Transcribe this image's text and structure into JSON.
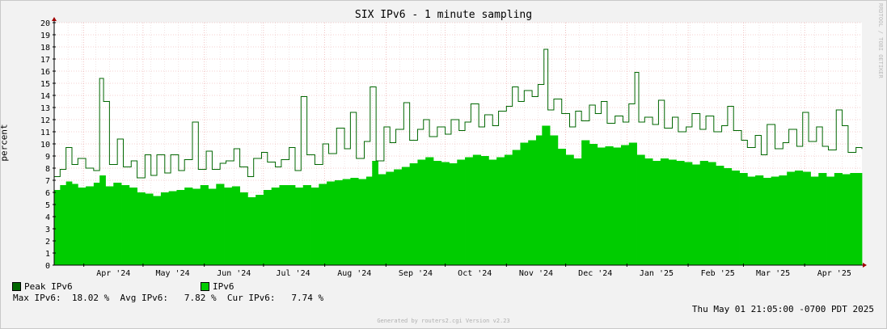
{
  "chart_data": {
    "type": "area",
    "title": "SIX IPv6 - 1 minute sampling",
    "ylabel": "percent",
    "ylim": [
      0,
      20
    ],
    "yticks": [
      0,
      1,
      2,
      3,
      4,
      5,
      6,
      7,
      8,
      9,
      10,
      11,
      12,
      13,
      14,
      15,
      16,
      17,
      18,
      19,
      20
    ],
    "x_start": "2024-03-17",
    "x_end": "2025-04-30",
    "xticks": [
      {
        "label": "Apr '24",
        "date": "2024-04-01"
      },
      {
        "label": "May '24",
        "date": "2024-05-01"
      },
      {
        "label": "Jun '24",
        "date": "2024-06-01"
      },
      {
        "label": "Jul '24",
        "date": "2024-07-01"
      },
      {
        "label": "Aug '24",
        "date": "2024-08-01"
      },
      {
        "label": "Sep '24",
        "date": "2024-09-01"
      },
      {
        "label": "Oct '24",
        "date": "2024-10-01"
      },
      {
        "label": "Nov '24",
        "date": "2024-11-01"
      },
      {
        "label": "Dec '24",
        "date": "2024-12-01"
      },
      {
        "label": "Jan '25",
        "date": "2025-01-01"
      },
      {
        "label": "Feb '25",
        "date": "2025-02-01"
      },
      {
        "label": "Mar '25",
        "date": "2025-03-01"
      },
      {
        "label": "Apr '25",
        "date": "2025-04-01"
      }
    ],
    "grid": true,
    "series": [
      {
        "name": "Peak IPv6",
        "style": "step-line",
        "color": "#006600",
        "points": [
          [
            "2024-03-17",
            7.3
          ],
          [
            "2024-03-20",
            7.9
          ],
          [
            "2024-03-23",
            9.7
          ],
          [
            "2024-03-26",
            8.3
          ],
          [
            "2024-03-29",
            8.8
          ],
          [
            "2024-04-02",
            8.0
          ],
          [
            "2024-04-06",
            7.8
          ],
          [
            "2024-04-09",
            15.4
          ],
          [
            "2024-04-11",
            13.5
          ],
          [
            "2024-04-14",
            8.3
          ],
          [
            "2024-04-18",
            10.4
          ],
          [
            "2024-04-21",
            8.1
          ],
          [
            "2024-04-25",
            8.6
          ],
          [
            "2024-04-28",
            7.2
          ],
          [
            "2024-05-02",
            9.1
          ],
          [
            "2024-05-05",
            7.4
          ],
          [
            "2024-05-08",
            9.1
          ],
          [
            "2024-05-12",
            7.6
          ],
          [
            "2024-05-15",
            9.1
          ],
          [
            "2024-05-19",
            7.8
          ],
          [
            "2024-05-22",
            8.7
          ],
          [
            "2024-05-26",
            11.8
          ],
          [
            "2024-05-29",
            7.9
          ],
          [
            "2024-06-02",
            9.4
          ],
          [
            "2024-06-05",
            7.9
          ],
          [
            "2024-06-09",
            8.4
          ],
          [
            "2024-06-12",
            8.6
          ],
          [
            "2024-06-16",
            9.6
          ],
          [
            "2024-06-19",
            8.1
          ],
          [
            "2024-06-23",
            7.3
          ],
          [
            "2024-06-26",
            8.8
          ],
          [
            "2024-06-30",
            9.3
          ],
          [
            "2024-07-03",
            8.5
          ],
          [
            "2024-07-07",
            8.1
          ],
          [
            "2024-07-10",
            8.7
          ],
          [
            "2024-07-14",
            9.7
          ],
          [
            "2024-07-17",
            7.8
          ],
          [
            "2024-07-20",
            13.9
          ],
          [
            "2024-07-23",
            9.1
          ],
          [
            "2024-07-27",
            8.3
          ],
          [
            "2024-07-31",
            10.0
          ],
          [
            "2024-08-03",
            9.2
          ],
          [
            "2024-08-07",
            11.3
          ],
          [
            "2024-08-11",
            9.6
          ],
          [
            "2024-08-14",
            12.6
          ],
          [
            "2024-08-17",
            8.8
          ],
          [
            "2024-08-21",
            10.2
          ],
          [
            "2024-08-24",
            14.7
          ],
          [
            "2024-08-27",
            8.6
          ],
          [
            "2024-08-31",
            11.4
          ],
          [
            "2024-09-03",
            10.1
          ],
          [
            "2024-09-06",
            11.2
          ],
          [
            "2024-09-10",
            13.4
          ],
          [
            "2024-09-13",
            10.3
          ],
          [
            "2024-09-17",
            11.2
          ],
          [
            "2024-09-20",
            12.0
          ],
          [
            "2024-09-23",
            10.6
          ],
          [
            "2024-09-27",
            11.4
          ],
          [
            "2024-10-01",
            10.8
          ],
          [
            "2024-10-04",
            12.0
          ],
          [
            "2024-10-08",
            11.1
          ],
          [
            "2024-10-11",
            11.8
          ],
          [
            "2024-10-14",
            13.3
          ],
          [
            "2024-10-18",
            11.4
          ],
          [
            "2024-10-21",
            12.4
          ],
          [
            "2024-10-25",
            11.5
          ],
          [
            "2024-10-28",
            12.7
          ],
          [
            "2024-11-01",
            13.1
          ],
          [
            "2024-11-04",
            14.7
          ],
          [
            "2024-11-07",
            13.5
          ],
          [
            "2024-11-10",
            14.4
          ],
          [
            "2024-11-14",
            13.9
          ],
          [
            "2024-11-17",
            14.9
          ],
          [
            "2024-11-20",
            17.8
          ],
          [
            "2024-11-22",
            12.8
          ],
          [
            "2024-11-25",
            13.7
          ],
          [
            "2024-11-29",
            12.5
          ],
          [
            "2024-12-03",
            11.4
          ],
          [
            "2024-12-06",
            12.7
          ],
          [
            "2024-12-09",
            11.9
          ],
          [
            "2024-12-13",
            13.2
          ],
          [
            "2024-12-16",
            12.5
          ],
          [
            "2024-12-19",
            13.5
          ],
          [
            "2024-12-22",
            11.7
          ],
          [
            "2024-12-26",
            12.3
          ],
          [
            "2024-12-30",
            11.8
          ],
          [
            "2025-01-02",
            13.3
          ],
          [
            "2025-01-05",
            15.9
          ],
          [
            "2025-01-07",
            11.8
          ],
          [
            "2025-01-10",
            12.2
          ],
          [
            "2025-01-14",
            11.6
          ],
          [
            "2025-01-17",
            13.6
          ],
          [
            "2025-01-20",
            11.3
          ],
          [
            "2025-01-24",
            12.2
          ],
          [
            "2025-01-27",
            11.0
          ],
          [
            "2025-01-31",
            11.4
          ],
          [
            "2025-02-03",
            12.5
          ],
          [
            "2025-02-07",
            11.2
          ],
          [
            "2025-02-10",
            12.3
          ],
          [
            "2025-02-14",
            11.0
          ],
          [
            "2025-02-18",
            11.5
          ],
          [
            "2025-02-21",
            13.1
          ],
          [
            "2025-02-24",
            11.1
          ],
          [
            "2025-02-28",
            10.3
          ],
          [
            "2025-03-03",
            9.7
          ],
          [
            "2025-03-07",
            10.7
          ],
          [
            "2025-03-10",
            9.1
          ],
          [
            "2025-03-13",
            11.6
          ],
          [
            "2025-03-17",
            9.6
          ],
          [
            "2025-03-21",
            10.1
          ],
          [
            "2025-03-24",
            11.2
          ],
          [
            "2025-03-28",
            9.8
          ],
          [
            "2025-03-31",
            12.6
          ],
          [
            "2025-04-03",
            10.2
          ],
          [
            "2025-04-07",
            11.4
          ],
          [
            "2025-04-10",
            9.8
          ],
          [
            "2025-04-13",
            9.5
          ],
          [
            "2025-04-17",
            12.8
          ],
          [
            "2025-04-20",
            11.5
          ],
          [
            "2025-04-23",
            9.3
          ],
          [
            "2025-04-27",
            9.7
          ],
          [
            "2025-04-30",
            9.6
          ]
        ]
      },
      {
        "name": "IPv6",
        "style": "area",
        "color": "#00cc00",
        "points": [
          [
            "2024-03-17",
            6.2
          ],
          [
            "2024-03-20",
            6.6
          ],
          [
            "2024-03-23",
            6.9
          ],
          [
            "2024-03-26",
            6.7
          ],
          [
            "2024-03-29",
            6.4
          ],
          [
            "2024-04-02",
            6.5
          ],
          [
            "2024-04-06",
            6.8
          ],
          [
            "2024-04-09",
            7.4
          ],
          [
            "2024-04-12",
            6.5
          ],
          [
            "2024-04-16",
            6.8
          ],
          [
            "2024-04-20",
            6.6
          ],
          [
            "2024-04-24",
            6.4
          ],
          [
            "2024-04-28",
            6.0
          ],
          [
            "2024-05-02",
            5.9
          ],
          [
            "2024-05-06",
            5.7
          ],
          [
            "2024-05-10",
            6.0
          ],
          [
            "2024-05-14",
            6.1
          ],
          [
            "2024-05-18",
            6.2
          ],
          [
            "2024-05-22",
            6.4
          ],
          [
            "2024-05-26",
            6.3
          ],
          [
            "2024-05-30",
            6.6
          ],
          [
            "2024-06-03",
            6.3
          ],
          [
            "2024-06-07",
            6.7
          ],
          [
            "2024-06-11",
            6.4
          ],
          [
            "2024-06-15",
            6.5
          ],
          [
            "2024-06-19",
            6.0
          ],
          [
            "2024-06-23",
            5.6
          ],
          [
            "2024-06-27",
            5.8
          ],
          [
            "2024-07-01",
            6.2
          ],
          [
            "2024-07-05",
            6.4
          ],
          [
            "2024-07-09",
            6.6
          ],
          [
            "2024-07-13",
            6.6
          ],
          [
            "2024-07-17",
            6.4
          ],
          [
            "2024-07-21",
            6.6
          ],
          [
            "2024-07-25",
            6.4
          ],
          [
            "2024-07-29",
            6.7
          ],
          [
            "2024-08-02",
            6.9
          ],
          [
            "2024-08-06",
            7.0
          ],
          [
            "2024-08-10",
            7.1
          ],
          [
            "2024-08-14",
            7.2
          ],
          [
            "2024-08-18",
            7.1
          ],
          [
            "2024-08-22",
            7.3
          ],
          [
            "2024-08-25",
            8.6
          ],
          [
            "2024-08-28",
            7.5
          ],
          [
            "2024-09-01",
            7.7
          ],
          [
            "2024-09-05",
            7.9
          ],
          [
            "2024-09-09",
            8.1
          ],
          [
            "2024-09-13",
            8.4
          ],
          [
            "2024-09-17",
            8.7
          ],
          [
            "2024-09-21",
            8.9
          ],
          [
            "2024-09-25",
            8.6
          ],
          [
            "2024-09-29",
            8.5
          ],
          [
            "2024-10-03",
            8.4
          ],
          [
            "2024-10-07",
            8.7
          ],
          [
            "2024-10-11",
            8.9
          ],
          [
            "2024-10-15",
            9.1
          ],
          [
            "2024-10-19",
            9.0
          ],
          [
            "2024-10-23",
            8.7
          ],
          [
            "2024-10-27",
            8.9
          ],
          [
            "2024-10-31",
            9.1
          ],
          [
            "2024-11-04",
            9.5
          ],
          [
            "2024-11-08",
            10.1
          ],
          [
            "2024-11-12",
            10.3
          ],
          [
            "2024-11-16",
            10.7
          ],
          [
            "2024-11-19",
            11.5
          ],
          [
            "2024-11-23",
            10.7
          ],
          [
            "2024-11-27",
            9.6
          ],
          [
            "2024-12-01",
            9.1
          ],
          [
            "2024-12-05",
            8.8
          ],
          [
            "2024-12-09",
            10.3
          ],
          [
            "2024-12-13",
            10.0
          ],
          [
            "2024-12-17",
            9.7
          ],
          [
            "2024-12-21",
            9.8
          ],
          [
            "2024-12-25",
            9.7
          ],
          [
            "2024-12-29",
            9.9
          ],
          [
            "2025-01-02",
            10.1
          ],
          [
            "2025-01-06",
            9.1
          ],
          [
            "2025-01-10",
            8.8
          ],
          [
            "2025-01-14",
            8.6
          ],
          [
            "2025-01-18",
            8.8
          ],
          [
            "2025-01-22",
            8.7
          ],
          [
            "2025-01-26",
            8.6
          ],
          [
            "2025-01-30",
            8.5
          ],
          [
            "2025-02-03",
            8.3
          ],
          [
            "2025-02-07",
            8.6
          ],
          [
            "2025-02-11",
            8.5
          ],
          [
            "2025-02-15",
            8.2
          ],
          [
            "2025-02-19",
            8.0
          ],
          [
            "2025-02-23",
            7.8
          ],
          [
            "2025-02-27",
            7.6
          ],
          [
            "2025-03-03",
            7.3
          ],
          [
            "2025-03-07",
            7.4
          ],
          [
            "2025-03-11",
            7.2
          ],
          [
            "2025-03-15",
            7.3
          ],
          [
            "2025-03-19",
            7.4
          ],
          [
            "2025-03-23",
            7.7
          ],
          [
            "2025-03-27",
            7.8
          ],
          [
            "2025-03-31",
            7.7
          ],
          [
            "2025-04-04",
            7.3
          ],
          [
            "2025-04-08",
            7.6
          ],
          [
            "2025-04-12",
            7.3
          ],
          [
            "2025-04-16",
            7.6
          ],
          [
            "2025-04-20",
            7.5
          ],
          [
            "2025-04-24",
            7.6
          ],
          [
            "2025-04-30",
            7.8
          ]
        ]
      }
    ],
    "legend": [
      {
        "label": "Peak IPv6",
        "color": "#006600"
      },
      {
        "label": "IPv6",
        "color": "#00cc00"
      }
    ],
    "stats_line": "Max IPv6:  18.02 %  Avg IPv6:   7.82 %  Cur IPv6:   7.74 %",
    "timestamp": "Thu May 01 21:05:00 -0700 PDT 2025",
    "footer": "Generated by routers2.cgi Version v2.23",
    "side_label": "RRDTOOL / TOBI OETIKER"
  }
}
